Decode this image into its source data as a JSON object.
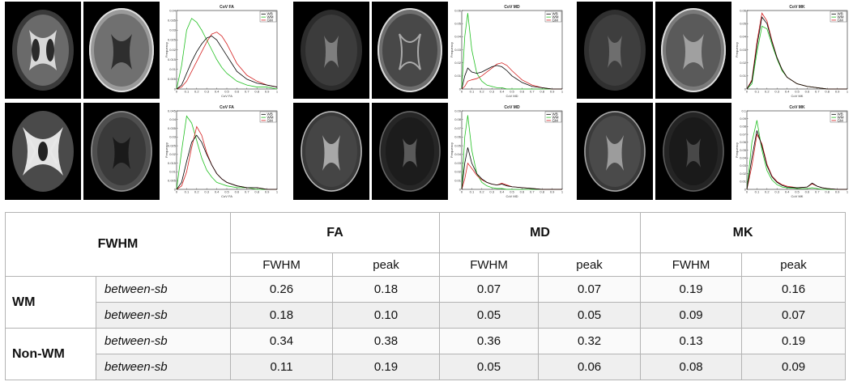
{
  "panels": [
    {
      "id": "fa",
      "plots": [
        {
          "title": "CoV FA",
          "xlabel": "CoV FA",
          "ylabel": "Frequency",
          "xticks": [
            "0",
            "0.1",
            "0.2",
            "0.3",
            "0.4",
            "0.5",
            "0.6",
            "0.7",
            "0.8",
            "0.9",
            "1"
          ],
          "yticks": [
            "0",
            "0.005",
            "0.01",
            "0.015",
            "0.02",
            "0.025",
            "0.03",
            "0.035",
            "0.04"
          ],
          "legend": [
            "WB",
            "WM",
            "GM"
          ]
        },
        {
          "title": "CoV FA",
          "xlabel": "CoV FA",
          "ylabel": "Frequency",
          "xticks": [
            "0",
            "0.1",
            "0.2",
            "0.3",
            "0.4",
            "0.5",
            "0.6",
            "0.7",
            "0.8",
            "0.9",
            "1"
          ],
          "yticks": [
            "0",
            "0.005",
            "0.01",
            "0.015",
            "0.02",
            "0.025",
            "0.03",
            "0.035",
            "0.04",
            "0.045"
          ],
          "legend": [
            "WB",
            "WM",
            "GM"
          ]
        }
      ]
    },
    {
      "id": "md",
      "plots": [
        {
          "title": "CoV MD",
          "xlabel": "CoV MD",
          "ylabel": "Frequency",
          "xticks": [
            "0",
            "0.1",
            "0.2",
            "0.3",
            "0.4",
            "0.5",
            "0.6",
            "0.7",
            "0.8",
            "0.9",
            "1"
          ],
          "yticks": [
            "0",
            "0.01",
            "0.02",
            "0.03",
            "0.04",
            "0.05",
            "0.06"
          ],
          "legend": [
            "WB",
            "WM",
            "GM"
          ]
        },
        {
          "title": "CoV MD",
          "xlabel": "CoV MD",
          "ylabel": "Frequency",
          "xticks": [
            "0",
            "0.1",
            "0.2",
            "0.3",
            "0.4",
            "0.5",
            "0.6",
            "0.7",
            "0.8",
            "0.9",
            "1"
          ],
          "yticks": [
            "0",
            "0.01",
            "0.02",
            "0.03",
            "0.04",
            "0.05",
            "0.06",
            "0.07",
            "0.08",
            "0.09"
          ],
          "legend": [
            "WB",
            "WM",
            "GM"
          ]
        }
      ]
    },
    {
      "id": "mk",
      "plots": [
        {
          "title": "CoV MK",
          "xlabel": "CoV MK",
          "ylabel": "Frequency",
          "xticks": [
            "0",
            "0.1",
            "0.2",
            "0.3",
            "0.4",
            "0.5",
            "0.6",
            "0.7",
            "0.8",
            "0.9",
            "1"
          ],
          "yticks": [
            "0",
            "0.01",
            "0.02",
            "0.03",
            "0.04",
            "0.05",
            "0.06"
          ],
          "legend": [
            "WB",
            "WM",
            "GM"
          ]
        },
        {
          "title": "CoV MK",
          "xlabel": "CoV MK",
          "ylabel": "Frequency",
          "xticks": [
            "0",
            "0.1",
            "0.2",
            "0.3",
            "0.4",
            "0.5",
            "0.6",
            "0.7",
            "0.8",
            "0.9",
            "1"
          ],
          "yticks": [
            "0",
            "0.01",
            "0.02",
            "0.03",
            "0.04",
            "0.05",
            "0.06",
            "0.07",
            "0.08",
            "0.09",
            "0.1"
          ],
          "legend": [
            "WB",
            "WM",
            "GM"
          ]
        }
      ]
    }
  ],
  "series_colors": {
    "WB": "#000000",
    "WM": "#22c022",
    "GM": "#d42020"
  },
  "chart_data": [
    {
      "type": "line",
      "title": "CoV FA",
      "xlabel": "CoV FA",
      "ylabel": "Frequency",
      "xlim": [
        0,
        1
      ],
      "ylim": [
        0,
        0.04
      ],
      "x": [
        0,
        0.05,
        0.1,
        0.15,
        0.2,
        0.25,
        0.3,
        0.35,
        0.4,
        0.45,
        0.5,
        0.55,
        0.6,
        0.7,
        0.8,
        0.9,
        1.0
      ],
      "series": [
        {
          "name": "WB",
          "values": [
            0,
            0.002,
            0.008,
            0.014,
            0.019,
            0.023,
            0.026,
            0.027,
            0.025,
            0.021,
            0.017,
            0.013,
            0.009,
            0.005,
            0.003,
            0.002,
            0.001
          ]
        },
        {
          "name": "WM",
          "values": [
            0,
            0.012,
            0.03,
            0.036,
            0.034,
            0.03,
            0.025,
            0.02,
            0.015,
            0.011,
            0.008,
            0.006,
            0.004,
            0.002,
            0.001,
            0.001,
            0
          ]
        },
        {
          "name": "GM",
          "values": [
            0,
            0.001,
            0.004,
            0.009,
            0.014,
            0.019,
            0.024,
            0.028,
            0.029,
            0.027,
            0.023,
            0.018,
            0.013,
            0.007,
            0.004,
            0.002,
            0.001
          ]
        }
      ]
    },
    {
      "type": "line",
      "title": "CoV FA",
      "xlabel": "CoV FA",
      "ylabel": "Frequency",
      "xlim": [
        0,
        1
      ],
      "ylim": [
        0,
        0.045
      ],
      "x": [
        0,
        0.05,
        0.1,
        0.15,
        0.2,
        0.25,
        0.3,
        0.35,
        0.4,
        0.45,
        0.5,
        0.6,
        0.7,
        0.8,
        0.9,
        1.0
      ],
      "series": [
        {
          "name": "WB",
          "values": [
            0,
            0.004,
            0.016,
            0.027,
            0.031,
            0.027,
            0.02,
            0.014,
            0.009,
            0.006,
            0.004,
            0.002,
            0.001,
            0.001,
            0,
            0
          ]
        },
        {
          "name": "WM",
          "values": [
            0,
            0.022,
            0.042,
            0.038,
            0.028,
            0.018,
            0.011,
            0.007,
            0.004,
            0.003,
            0.002,
            0.001,
            0.001,
            0,
            0,
            0
          ]
        },
        {
          "name": "GM",
          "values": [
            0,
            0.002,
            0.01,
            0.024,
            0.036,
            0.031,
            0.021,
            0.014,
            0.009,
            0.006,
            0.004,
            0.002,
            0.001,
            0.001,
            0,
            0
          ]
        }
      ]
    },
    {
      "type": "line",
      "title": "CoV MD",
      "xlabel": "CoV MD",
      "ylabel": "Frequency",
      "xlim": [
        0,
        1
      ],
      "ylim": [
        0,
        0.06
      ],
      "x": [
        0,
        0.03,
        0.06,
        0.1,
        0.15,
        0.2,
        0.25,
        0.3,
        0.35,
        0.4,
        0.45,
        0.5,
        0.6,
        0.7,
        0.8,
        0.9,
        1.0
      ],
      "series": [
        {
          "name": "WB",
          "values": [
            0,
            0.01,
            0.016,
            0.013,
            0.012,
            0.013,
            0.015,
            0.017,
            0.018,
            0.017,
            0.014,
            0.01,
            0.005,
            0.002,
            0.001,
            0,
            0
          ]
        },
        {
          "name": "WM",
          "values": [
            0,
            0.04,
            0.058,
            0.03,
            0.012,
            0.006,
            0.003,
            0.002,
            0.001,
            0.001,
            0,
            0,
            0,
            0,
            0,
            0,
            0
          ]
        },
        {
          "name": "GM",
          "values": [
            0,
            0.002,
            0.006,
            0.007,
            0.008,
            0.01,
            0.013,
            0.016,
            0.019,
            0.02,
            0.018,
            0.014,
            0.007,
            0.003,
            0.001,
            0,
            0
          ]
        }
      ]
    },
    {
      "type": "line",
      "title": "CoV MD",
      "xlabel": "CoV MD",
      "ylabel": "Frequency",
      "xlim": [
        0,
        1
      ],
      "ylim": [
        0,
        0.09
      ],
      "x": [
        0,
        0.03,
        0.06,
        0.1,
        0.15,
        0.2,
        0.25,
        0.3,
        0.35,
        0.4,
        0.45,
        0.5,
        0.6,
        0.7,
        0.8,
        0.9,
        1.0
      ],
      "series": [
        {
          "name": "WB",
          "values": [
            0,
            0.03,
            0.048,
            0.03,
            0.018,
            0.012,
            0.008,
            0.006,
            0.005,
            0.006,
            0.004,
            0.003,
            0.002,
            0.001,
            0,
            0,
            0
          ]
        },
        {
          "name": "WM",
          "values": [
            0,
            0.06,
            0.085,
            0.045,
            0.018,
            0.008,
            0.004,
            0.002,
            0.001,
            0.001,
            0,
            0,
            0,
            0,
            0,
            0,
            0
          ]
        },
        {
          "name": "GM",
          "values": [
            0,
            0.012,
            0.03,
            0.024,
            0.016,
            0.011,
            0.008,
            0.006,
            0.005,
            0.007,
            0.005,
            0.003,
            0.002,
            0.001,
            0,
            0,
            0
          ]
        }
      ]
    },
    {
      "type": "line",
      "title": "CoV MK",
      "xlabel": "CoV MK",
      "ylabel": "Frequency",
      "xlim": [
        0,
        1
      ],
      "ylim": [
        0,
        0.06
      ],
      "x": [
        0,
        0.05,
        0.1,
        0.15,
        0.2,
        0.25,
        0.3,
        0.35,
        0.4,
        0.5,
        0.6,
        0.7,
        0.8,
        0.9,
        1.0
      ],
      "series": [
        {
          "name": "WB",
          "values": [
            0,
            0.006,
            0.033,
            0.055,
            0.05,
            0.036,
            0.024,
            0.015,
            0.009,
            0.004,
            0.002,
            0.001,
            0,
            0,
            0
          ]
        },
        {
          "name": "WM",
          "values": [
            0,
            0.004,
            0.028,
            0.048,
            0.046,
            0.034,
            0.023,
            0.014,
            0.009,
            0.004,
            0.002,
            0.001,
            0,
            0,
            0
          ]
        },
        {
          "name": "GM",
          "values": [
            0,
            0.007,
            0.036,
            0.058,
            0.052,
            0.037,
            0.024,
            0.015,
            0.009,
            0.004,
            0.002,
            0.001,
            0,
            0,
            0
          ]
        }
      ]
    },
    {
      "type": "line",
      "title": "CoV MK",
      "xlabel": "CoV MK",
      "ylabel": "Frequency",
      "xlim": [
        0,
        1
      ],
      "ylim": [
        0,
        0.1
      ],
      "x": [
        0,
        0.05,
        0.1,
        0.15,
        0.2,
        0.25,
        0.3,
        0.35,
        0.4,
        0.5,
        0.6,
        0.65,
        0.7,
        0.75,
        0.8,
        0.9,
        1.0
      ],
      "series": [
        {
          "name": "WB",
          "values": [
            0,
            0.04,
            0.075,
            0.055,
            0.03,
            0.016,
            0.009,
            0.005,
            0.003,
            0.002,
            0.003,
            0.008,
            0.004,
            0.002,
            0.001,
            0,
            0
          ]
        },
        {
          "name": "WM",
          "values": [
            0,
            0.06,
            0.088,
            0.05,
            0.024,
            0.012,
            0.006,
            0.003,
            0.002,
            0.001,
            0.001,
            0.002,
            0.001,
            0,
            0,
            0,
            0
          ]
        },
        {
          "name": "GM",
          "values": [
            0,
            0.03,
            0.07,
            0.058,
            0.032,
            0.017,
            0.01,
            0.006,
            0.004,
            0.002,
            0.003,
            0.007,
            0.004,
            0.002,
            0.001,
            0,
            0
          ]
        }
      ]
    }
  ],
  "table": {
    "corner": "FWHM",
    "metrics": [
      "FA",
      "MD",
      "MK"
    ],
    "subheaders": [
      "FWHM",
      "peak",
      "FWHM",
      "peak",
      "FWHM",
      "peak"
    ],
    "groups": [
      {
        "label": "WM",
        "rows": [
          {
            "label": "between-sb",
            "values": [
              "0.26",
              "0.18",
              "0.07",
              "0.07",
              "0.19",
              "0.16"
            ]
          },
          {
            "label": "between-sb",
            "values": [
              "0.18",
              "0.10",
              "0.05",
              "0.05",
              "0.09",
              "0.07"
            ]
          }
        ]
      },
      {
        "label": "Non-WM",
        "rows": [
          {
            "label": "between-sb",
            "values": [
              "0.34",
              "0.38",
              "0.36",
              "0.32",
              "0.13",
              "0.19"
            ]
          },
          {
            "label": "between-sb",
            "values": [
              "0.11",
              "0.19",
              "0.05",
              "0.06",
              "0.08",
              "0.09"
            ]
          }
        ]
      }
    ]
  }
}
